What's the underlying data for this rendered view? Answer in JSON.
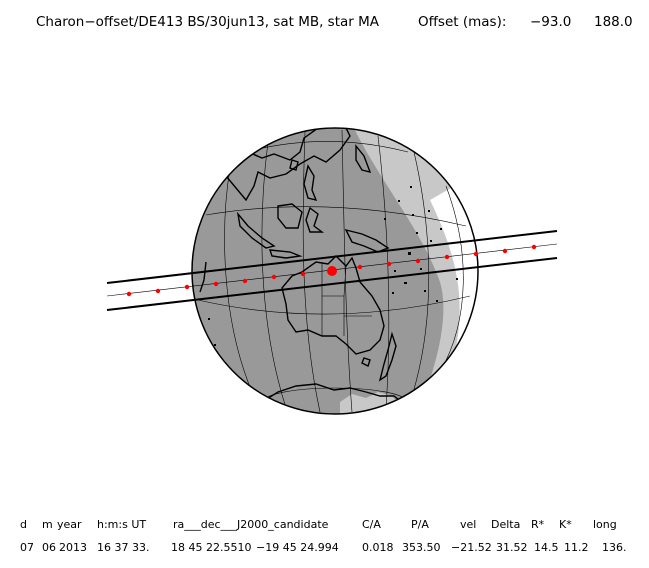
{
  "title": {
    "event": "Charon−offset/DE413 BS/30jun13, sat MB, star MA",
    "offset_label": "Offset (mas):",
    "offset_ra": "−93.0",
    "offset_dec": "188.0"
  },
  "table": {
    "headers": [
      "d",
      "m",
      "year",
      "h:m:s UT",
      "ra___dec___J2000_candidate",
      "C/A",
      "P/A",
      "vel",
      "Delta",
      "R*",
      "K*",
      "long"
    ],
    "values": [
      "07",
      "06",
      "2013",
      "16 37 33.",
      "18 45 22.5510",
      "−19 45  24.994",
      "0.018",
      "353.50",
      "−21.52",
      "31.52",
      "14.5",
      "11.2",
      "136."
    ]
  },
  "colors": {
    "night": "#999999",
    "twilight": "#c8c8c8",
    "day": "#ffffff",
    "coast": "#000000",
    "track": "#ff0000"
  }
}
